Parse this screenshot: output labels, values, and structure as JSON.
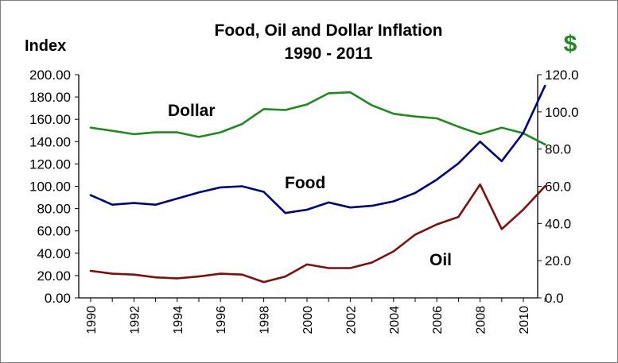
{
  "chart_data": {
    "type": "line",
    "title": "Food, Oil and Dollar Inflation",
    "subtitle": "1990 - 2011",
    "ylabel_left": "Index",
    "ylabel_right": "$",
    "x": [
      1990,
      1991,
      1992,
      1993,
      1994,
      1995,
      1996,
      1997,
      1998,
      1999,
      2000,
      2001,
      2002,
      2003,
      2004,
      2005,
      2006,
      2007,
      2008,
      2009,
      2010,
      2011
    ],
    "x_ticks": [
      "1990",
      "1992",
      "1994",
      "1996",
      "1998",
      "2000",
      "2002",
      "2004",
      "2006",
      "2008",
      "2010"
    ],
    "ylim_left": [
      0,
      200
    ],
    "yticks_left": [
      "0.00",
      "20.00",
      "40.00",
      "60.00",
      "80.00",
      "100.00",
      "120.00",
      "140.00",
      "160.00",
      "180.00",
      "200.00"
    ],
    "ylim_right": [
      0,
      120
    ],
    "yticks_right": [
      "0.0",
      "20.0",
      "40.0",
      "60.0",
      "80.0",
      "100.0",
      "120.0"
    ],
    "grid": false,
    "legend": "none",
    "series": [
      {
        "name": "Dollar",
        "axis": "right",
        "color": "#1f8a1f",
        "values": [
          91.5,
          89.8,
          88.0,
          89.0,
          89.0,
          86.5,
          89.0,
          93.5,
          101.5,
          101.0,
          104.0,
          110.0,
          110.5,
          103.5,
          99.0,
          97.5,
          96.5,
          92.0,
          88.0,
          91.5,
          88.5,
          82.5
        ]
      },
      {
        "name": "Food",
        "axis": "left",
        "color": "#00007f",
        "values": [
          92.0,
          83.5,
          85.0,
          83.5,
          89.0,
          94.5,
          99.0,
          100.0,
          95.0,
          76.0,
          79.0,
          85.5,
          81.0,
          82.5,
          86.5,
          94.0,
          106.0,
          120.5,
          140.0,
          122.5,
          148.0,
          190.0
        ]
      },
      {
        "name": "Oil",
        "axis": "right",
        "color": "#7f0f0f",
        "values": [
          14.5,
          13.0,
          12.5,
          11.0,
          10.5,
          11.5,
          13.0,
          12.5,
          8.5,
          11.5,
          18.0,
          16.0,
          16.0,
          19.0,
          25.0,
          34.0,
          39.5,
          43.5,
          61.0,
          37.0,
          47.5,
          60.0
        ]
      }
    ]
  }
}
